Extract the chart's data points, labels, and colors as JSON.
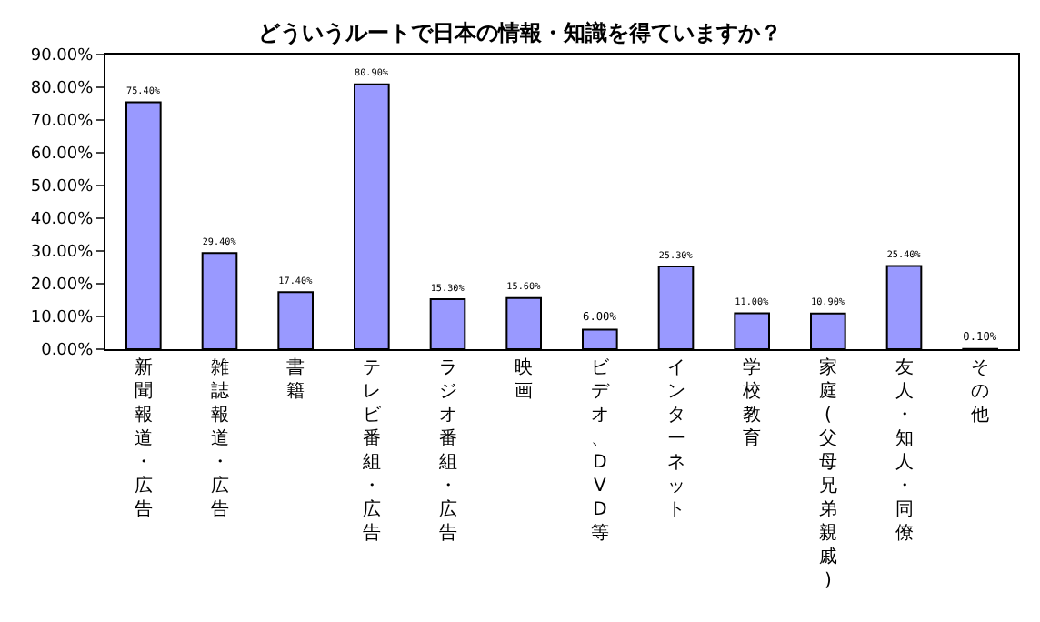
{
  "chart_data": {
    "type": "bar",
    "title": "どういうルートで日本の情報・知識を得ていますか？",
    "categories": [
      "新聞報道・広告",
      "雑誌報道・広告",
      "書籍",
      "テレビ番組・広告",
      "ラジオ番組・広告",
      "映画",
      "ビデオ、DVD等",
      "インターネット",
      "学校教育",
      "家庭(父母兄弟親戚)",
      "友人・知人・同僚",
      "その他"
    ],
    "values": [
      75.4,
      29.4,
      17.4,
      80.9,
      15.3,
      15.6,
      6.0,
      25.3,
      11.0,
      10.9,
      25.4,
      0.1
    ],
    "value_labels": [
      "75.40%",
      "29.40%",
      "17.40%",
      "80.90%",
      "15.30%",
      "15.60%",
      "6.00%",
      "25.30%",
      "11.00%",
      "10.90%",
      "25.40%",
      "0.10%"
    ],
    "color": "#9999ff",
    "ylim": [
      0,
      90
    ],
    "yticks": [
      {
        "value": 0,
        "label": "0.00%"
      },
      {
        "value": 10,
        "label": "10.00%"
      },
      {
        "value": 20,
        "label": "20.00%"
      },
      {
        "value": 30,
        "label": "30.00%"
      },
      {
        "value": 40,
        "label": "40.00%"
      },
      {
        "value": 50,
        "label": "50.00%"
      },
      {
        "value": 60,
        "label": "60.00%"
      },
      {
        "value": 70,
        "label": "70.00%"
      },
      {
        "value": 80,
        "label": "80.00%"
      },
      {
        "value": 90,
        "label": "90.00%"
      }
    ],
    "grid": false,
    "legend": false
  }
}
